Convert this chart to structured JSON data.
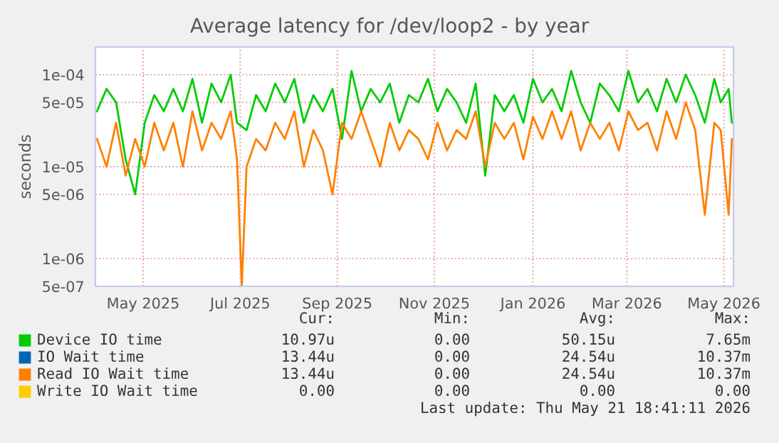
{
  "chart_data": {
    "type": "line",
    "title": "Average latency for /dev/loop2 - by year",
    "ylabel": "seconds",
    "log": "y",
    "grid": true,
    "legend": "bottom",
    "x": [
      "2025-04-17",
      "2025-04-23",
      "2025-04-29",
      "2025-05-05",
      "2025-05-11",
      "2025-05-17",
      "2025-05-23",
      "2025-05-29",
      "2025-06-04",
      "2025-06-10",
      "2025-06-16",
      "2025-06-22",
      "2025-06-28",
      "2025-07-04",
      "2025-07-10",
      "2025-07-14",
      "2025-07-17",
      "2025-07-20",
      "2025-07-26",
      "2025-08-01",
      "2025-08-07",
      "2025-08-13",
      "2025-08-19",
      "2025-08-25",
      "2025-08-31",
      "2025-09-06",
      "2025-09-12",
      "2025-09-18",
      "2025-09-24",
      "2025-09-30",
      "2025-10-06",
      "2025-10-12",
      "2025-10-18",
      "2025-10-24",
      "2025-10-30",
      "2025-11-05",
      "2025-11-11",
      "2025-11-17",
      "2025-11-23",
      "2025-11-29",
      "2025-12-05",
      "2025-12-11",
      "2025-12-17",
      "2025-12-23",
      "2025-12-29",
      "2026-01-04",
      "2026-01-10",
      "2026-01-16",
      "2026-01-22",
      "2026-01-28",
      "2026-02-03",
      "2026-02-09",
      "2026-02-15",
      "2026-02-21",
      "2026-02-27",
      "2026-03-05",
      "2026-03-11",
      "2026-03-17",
      "2026-03-23",
      "2026-03-29",
      "2026-04-04",
      "2026-04-10",
      "2026-04-16",
      "2026-04-22",
      "2026-04-28",
      "2026-05-04",
      "2026-05-10",
      "2026-05-14",
      "2026-05-19",
      "2026-05-21"
    ],
    "xlim": [
      "2025-04-16",
      "2026-05-22"
    ],
    "xticks": [
      {
        "value": "2025-05-16",
        "label": "May 2025"
      },
      {
        "value": "2025-07-16",
        "label": "Jul 2025"
      },
      {
        "value": "2025-09-15",
        "label": "Sep 2025"
      },
      {
        "value": "2025-11-15",
        "label": "Nov 2025"
      },
      {
        "value": "2026-01-16",
        "label": "Jan 2026"
      },
      {
        "value": "2026-03-16",
        "label": "Mar 2026"
      },
      {
        "value": "2026-05-16",
        "label": "May 2026"
      }
    ],
    "ylim": [
      5e-07,
      0.0002
    ],
    "yticks": [
      {
        "value": 5e-07,
        "label": "5e-07"
      },
      {
        "value": 1e-06,
        "label": "1e-06"
      },
      {
        "value": 5e-06,
        "label": "5e-06"
      },
      {
        "value": 1e-05,
        "label": "1e-05"
      },
      {
        "value": 5e-05,
        "label": "5e-05"
      },
      {
        "value": 0.0001,
        "label": "1e-04"
      }
    ],
    "series": [
      {
        "name": "Device IO time",
        "color": "#00cc00",
        "values": [
          4e-05,
          7e-05,
          5e-05,
          1.2e-05,
          5e-06,
          3e-05,
          6e-05,
          4e-05,
          7e-05,
          4e-05,
          9e-05,
          3e-05,
          8e-05,
          5e-05,
          0.0001,
          3e-05,
          null,
          2.5e-05,
          6e-05,
          4e-05,
          8e-05,
          5e-05,
          9e-05,
          3e-05,
          6e-05,
          4e-05,
          7e-05,
          2e-05,
          0.00011,
          4e-05,
          7e-05,
          5e-05,
          8e-05,
          3e-05,
          6e-05,
          5e-05,
          9e-05,
          4e-05,
          7e-05,
          5e-05,
          3e-05,
          8e-05,
          8e-06,
          6e-05,
          4e-05,
          6e-05,
          3e-05,
          9e-05,
          5e-05,
          7e-05,
          4e-05,
          0.00011,
          5e-05,
          3e-05,
          8e-05,
          6e-05,
          4e-05,
          0.00011,
          5e-05,
          7e-05,
          4e-05,
          9e-05,
          5e-05,
          0.0001,
          6e-05,
          3e-05,
          9e-05,
          5e-05,
          7e-05,
          3e-05
        ]
      },
      {
        "name": "IO Wait time",
        "color": "#0066b3",
        "values": [
          null,
          null,
          null,
          null,
          null,
          null,
          null,
          null,
          null,
          null,
          null,
          null,
          null,
          null,
          null,
          null,
          null,
          null,
          null,
          null,
          null,
          null,
          null,
          null,
          null,
          null,
          null,
          null,
          null,
          null,
          null,
          null,
          null,
          null,
          null,
          null,
          null,
          null,
          null,
          null,
          null,
          null,
          null,
          null,
          null,
          null,
          null,
          null,
          null,
          null,
          null,
          null,
          null,
          null,
          null,
          null,
          null,
          null,
          null,
          null,
          null,
          null,
          null,
          null,
          null,
          null,
          null,
          null,
          null,
          null
        ]
      },
      {
        "name": "Read IO Wait time",
        "color": "#ff8000",
        "values": [
          2e-05,
          1e-05,
          3e-05,
          8e-06,
          2e-05,
          1e-05,
          3e-05,
          1.5e-05,
          3e-05,
          1e-05,
          4e-05,
          1.5e-05,
          3e-05,
          2e-05,
          4e-05,
          1.2e-05,
          5e-07,
          1e-05,
          2e-05,
          1.5e-05,
          3e-05,
          2e-05,
          4e-05,
          1e-05,
          2.5e-05,
          1.5e-05,
          5e-06,
          3e-05,
          2e-05,
          4e-05,
          2e-05,
          1e-05,
          3e-05,
          1.5e-05,
          2.5e-05,
          2e-05,
          1.2e-05,
          3e-05,
          1.5e-05,
          2.5e-05,
          2e-05,
          4e-05,
          1e-05,
          3e-05,
          2e-05,
          3e-05,
          1.2e-05,
          3.5e-05,
          2e-05,
          4e-05,
          2e-05,
          4e-05,
          1.5e-05,
          3e-05,
          2e-05,
          3e-05,
          1.5e-05,
          4e-05,
          2.5e-05,
          3e-05,
          1.5e-05,
          4e-05,
          2e-05,
          5e-05,
          2.5e-05,
          3e-06,
          3e-05,
          2.5e-05,
          3e-06,
          2e-05
        ]
      },
      {
        "name": "Write IO Wait time",
        "color": "#ffcc00",
        "values": [
          null,
          null,
          null,
          null,
          null,
          null,
          null,
          null,
          null,
          null,
          null,
          null,
          null,
          null,
          null,
          null,
          null,
          null,
          null,
          null,
          null,
          null,
          null,
          null,
          null,
          null,
          null,
          null,
          null,
          null,
          null,
          null,
          null,
          null,
          null,
          null,
          null,
          null,
          null,
          null,
          null,
          null,
          null,
          null,
          null,
          null,
          null,
          null,
          null,
          null,
          null,
          null,
          null,
          null,
          null,
          null,
          null,
          null,
          null,
          null,
          null,
          null,
          null,
          null,
          null,
          null,
          null,
          null,
          null,
          null
        ]
      }
    ],
    "annotations": [
      "Cur:",
      "Min:",
      "Avg:",
      "Max:",
      "10.97u",
      "0.00",
      "50.15u",
      "7.65m",
      "13.44u",
      "0.00",
      "24.54u",
      "10.37m",
      "13.44u",
      "0.00",
      "24.54u",
      "10.37m",
      "0.00",
      "0.00",
      "0.00",
      "0.00",
      "Last update: Thu May 21 18:41:11 2026"
    ]
  }
}
